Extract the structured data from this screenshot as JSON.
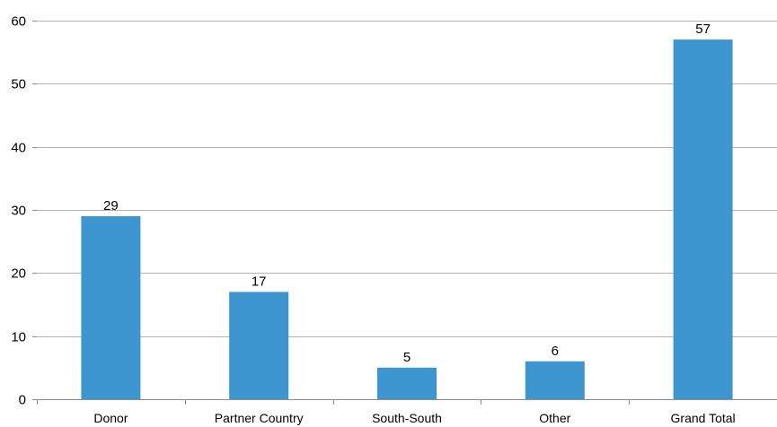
{
  "chart_data": {
    "type": "bar",
    "categories": [
      "Donor",
      "Partner Country",
      "South-South",
      "Other",
      "Grand Total"
    ],
    "values": [
      29,
      17,
      5,
      6,
      57
    ],
    "title": "",
    "xlabel": "",
    "ylabel": "",
    "ylim": [
      0,
      60
    ],
    "yticks": [
      0,
      10,
      20,
      30,
      40,
      50,
      60
    ],
    "grid": true,
    "bar_color": "#3e96d0"
  }
}
